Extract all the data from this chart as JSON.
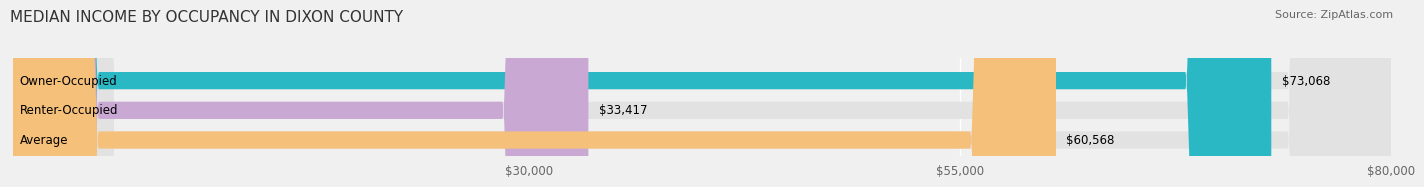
{
  "title": "MEDIAN INCOME BY OCCUPANCY IN DIXON COUNTY",
  "source": "Source: ZipAtlas.com",
  "categories": [
    "Owner-Occupied",
    "Renter-Occupied",
    "Average"
  ],
  "values": [
    73068,
    33417,
    60568
  ],
  "bar_colors": [
    "#2ab8c5",
    "#c9a8d4",
    "#f5c07a"
  ],
  "bar_labels": [
    "$73,068",
    "$33,417",
    "$60,568"
  ],
  "xlim": [
    0,
    80000
  ],
  "xticks": [
    30000,
    55000,
    80000
  ],
  "xtick_labels": [
    "$30,000",
    "$55,000",
    "$80,000"
  ],
  "background_color": "#f0f0f0",
  "bar_background_color": "#e2e2e2",
  "title_fontsize": 11,
  "label_fontsize": 8.5,
  "value_fontsize": 8.5,
  "source_fontsize": 8
}
